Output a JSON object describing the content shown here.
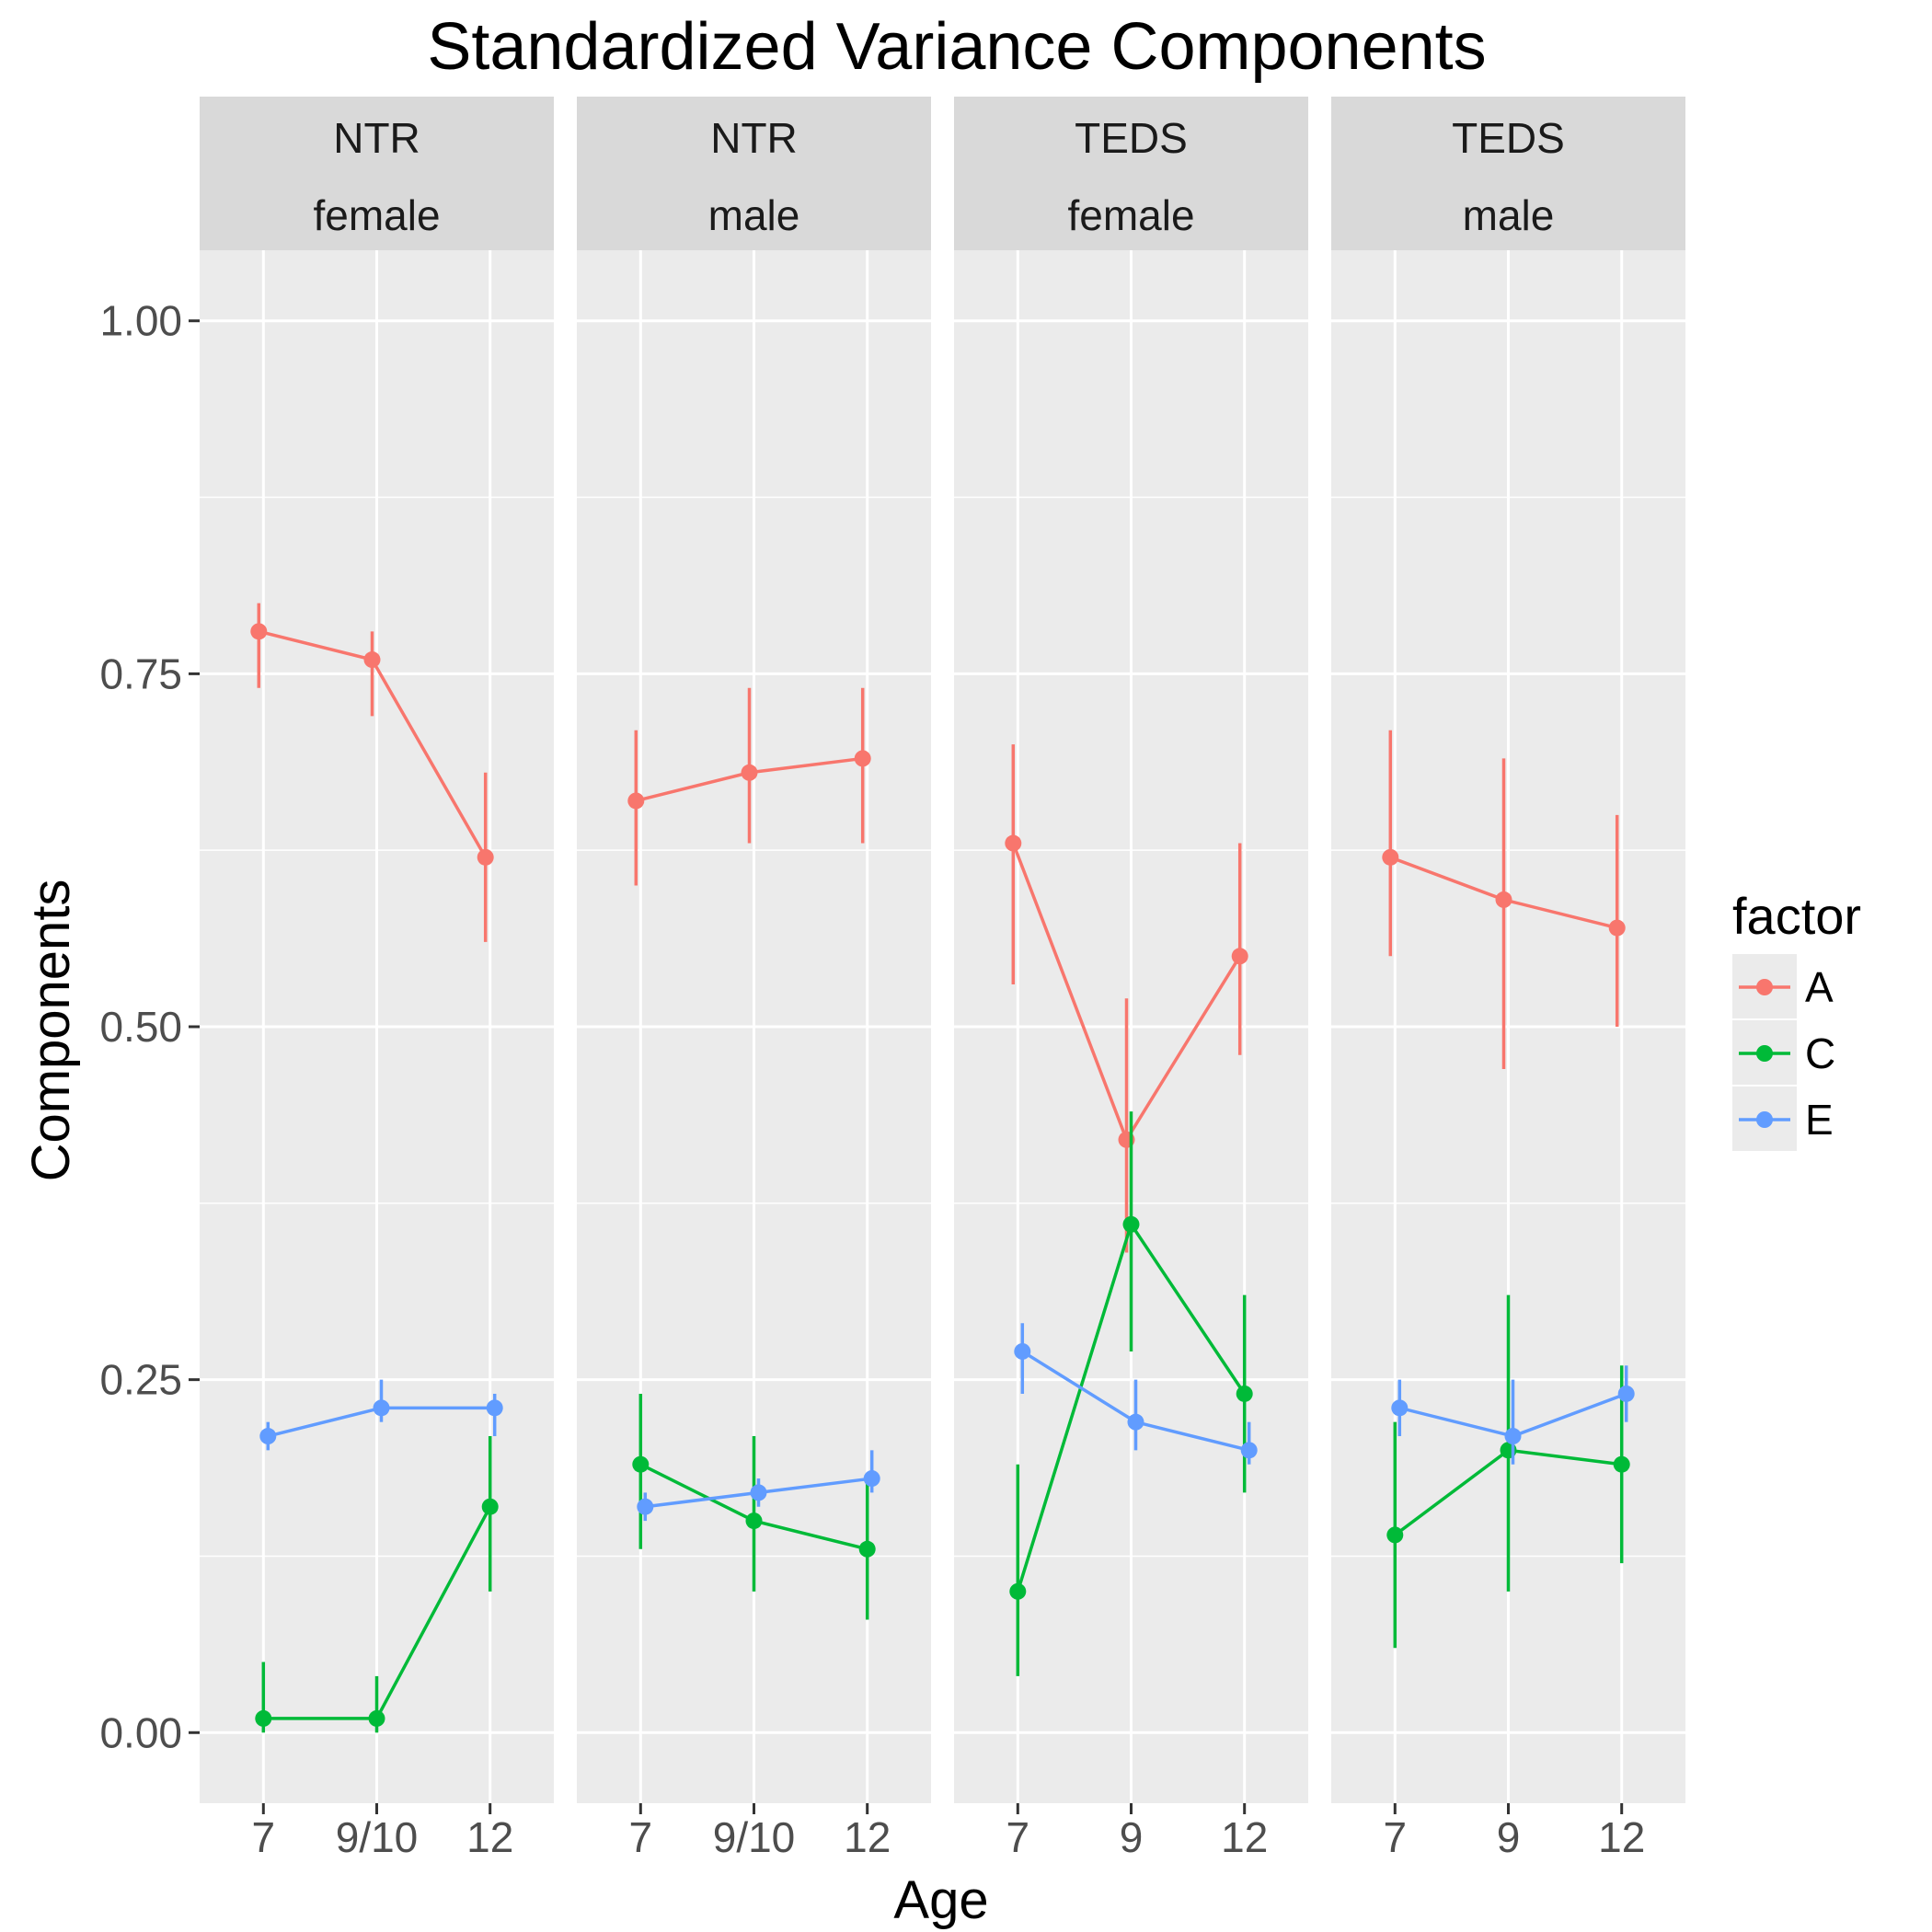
{
  "chart_data": {
    "type": "line",
    "title": "Standardized Variance Components",
    "xlabel": "Age",
    "ylabel": "Components",
    "ylim": [
      -0.05,
      1.05
    ],
    "y_ticks": [
      0.0,
      0.25,
      0.5,
      0.75,
      1.0
    ],
    "y_tick_labels": [
      "0.00",
      "0.25",
      "0.50",
      "0.75",
      "1.00"
    ],
    "grid": true,
    "error_bars": true,
    "legend": {
      "title": "factor",
      "placement": "right",
      "entries": [
        {
          "label": "A",
          "color": "#F8766D"
        },
        {
          "label": "C",
          "color": "#00BA38"
        },
        {
          "label": "E",
          "color": "#619CFF"
        }
      ]
    },
    "panels": [
      {
        "strip_top": "NTR",
        "strip_bottom": "female",
        "categories": [
          "7",
          "9/10",
          "12"
        ],
        "series": [
          {
            "name": "A",
            "values": [
              0.78,
              0.76,
              0.62
            ],
            "lower": [
              0.74,
              0.72,
              0.56
            ],
            "upper": [
              0.8,
              0.78,
              0.68
            ]
          },
          {
            "name": "C",
            "values": [
              0.01,
              0.01,
              0.16
            ],
            "lower": [
              0.0,
              0.0,
              0.1
            ],
            "upper": [
              0.05,
              0.04,
              0.21
            ]
          },
          {
            "name": "E",
            "values": [
              0.21,
              0.23,
              0.23
            ],
            "lower": [
              0.2,
              0.22,
              0.21
            ],
            "upper": [
              0.22,
              0.25,
              0.24
            ]
          }
        ]
      },
      {
        "strip_top": "NTR",
        "strip_bottom": "male",
        "categories": [
          "7",
          "9/10",
          "12"
        ],
        "series": [
          {
            "name": "A",
            "values": [
              0.66,
              0.68,
              0.69
            ],
            "lower": [
              0.6,
              0.63,
              0.63
            ],
            "upper": [
              0.71,
              0.74,
              0.74
            ]
          },
          {
            "name": "C",
            "values": [
              0.19,
              0.15,
              0.13
            ],
            "lower": [
              0.13,
              0.1,
              0.08
            ],
            "upper": [
              0.24,
              0.21,
              0.18
            ]
          },
          {
            "name": "E",
            "values": [
              0.16,
              0.17,
              0.18
            ],
            "lower": [
              0.15,
              0.16,
              0.17
            ],
            "upper": [
              0.17,
              0.18,
              0.2
            ]
          }
        ]
      },
      {
        "strip_top": "TEDS",
        "strip_bottom": "female",
        "categories": [
          "7",
          "9",
          "12"
        ],
        "series": [
          {
            "name": "A",
            "values": [
              0.63,
              0.42,
              0.55
            ],
            "lower": [
              0.53,
              0.34,
              0.48
            ],
            "upper": [
              0.7,
              0.52,
              0.63
            ]
          },
          {
            "name": "C",
            "values": [
              0.1,
              0.36,
              0.24
            ],
            "lower": [
              0.04,
              0.27,
              0.17
            ],
            "upper": [
              0.19,
              0.44,
              0.31
            ]
          },
          {
            "name": "E",
            "values": [
              0.27,
              0.22,
              0.2
            ],
            "lower": [
              0.24,
              0.2,
              0.19
            ],
            "upper": [
              0.29,
              0.25,
              0.22
            ]
          }
        ]
      },
      {
        "strip_top": "TEDS",
        "strip_bottom": "male",
        "categories": [
          "7",
          "9",
          "12"
        ],
        "series": [
          {
            "name": "A",
            "values": [
              0.62,
              0.59,
              0.57
            ],
            "lower": [
              0.55,
              0.47,
              0.5
            ],
            "upper": [
              0.71,
              0.69,
              0.65
            ]
          },
          {
            "name": "C",
            "values": [
              0.14,
              0.2,
              0.19
            ],
            "lower": [
              0.06,
              0.1,
              0.12
            ],
            "upper": [
              0.22,
              0.31,
              0.26
            ]
          },
          {
            "name": "E",
            "values": [
              0.23,
              0.21,
              0.24
            ],
            "lower": [
              0.21,
              0.19,
              0.22
            ],
            "upper": [
              0.25,
              0.25,
              0.26
            ]
          }
        ]
      }
    ]
  }
}
